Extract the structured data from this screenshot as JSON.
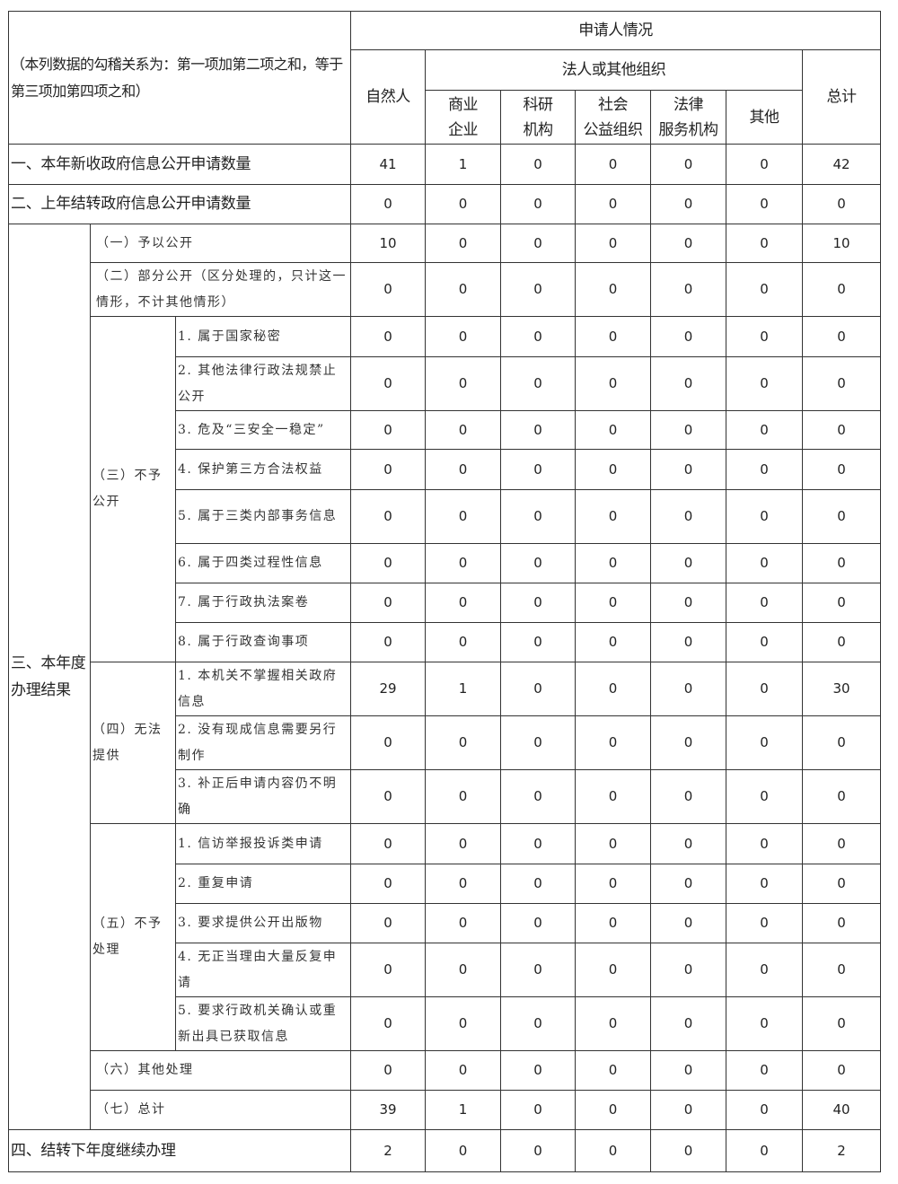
{
  "header": {
    "note": "（本列数据的勾稽关系为：第一项加第二项之和，等于第三项加第四项之和）",
    "applicant": "申请人情况",
    "natural": "自然人",
    "legal": "法人或其他组织",
    "orgs": [
      "商业\n企业",
      "科研\n机构",
      "社会\n公益组织",
      "法律\n服务机构",
      "其他"
    ],
    "total": "总计"
  },
  "section3_label": "三、本年度办理结果",
  "groups": {
    "not_disclosed": "（三）不予公开",
    "cannot_provide": "（四）无法提供",
    "not_processed": "（五）不予处理"
  },
  "rows": [
    {
      "label": "一、本年新收政府信息公开申请数量",
      "values": [
        "41",
        "1",
        "0",
        "0",
        "0",
        "0",
        "42"
      ]
    },
    {
      "label": "二、上年结转政府信息公开申请数量",
      "values": [
        "0",
        "0",
        "0",
        "0",
        "0",
        "0",
        "0"
      ]
    },
    {
      "label": "（一）予以公开",
      "values": [
        "10",
        "0",
        "0",
        "0",
        "0",
        "0",
        "10"
      ]
    },
    {
      "label": "（二）部分公开（区分处理的，只计这一情形，不计其他情形）",
      "values": [
        "0",
        "0",
        "0",
        "0",
        "0",
        "0",
        "0"
      ]
    },
    {
      "label": "1. 属于国家秘密",
      "values": [
        "0",
        "0",
        "0",
        "0",
        "0",
        "0",
        "0"
      ]
    },
    {
      "label": "2. 其他法律行政法规禁止公开",
      "values": [
        "0",
        "0",
        "0",
        "0",
        "0",
        "0",
        "0"
      ]
    },
    {
      "label": "3. 危及“三安全一稳定”",
      "values": [
        "0",
        "0",
        "0",
        "0",
        "0",
        "0",
        "0"
      ]
    },
    {
      "label": "4. 保护第三方合法权益",
      "values": [
        "0",
        "0",
        "0",
        "0",
        "0",
        "0",
        "0"
      ]
    },
    {
      "label": "5. 属于三类内部事务信息",
      "values": [
        "0",
        "0",
        "0",
        "0",
        "0",
        "0",
        "0"
      ]
    },
    {
      "label": "6. 属于四类过程性信息",
      "values": [
        "0",
        "0",
        "0",
        "0",
        "0",
        "0",
        "0"
      ]
    },
    {
      "label": "7. 属于行政执法案卷",
      "values": [
        "0",
        "0",
        "0",
        "0",
        "0",
        "0",
        "0"
      ]
    },
    {
      "label": "8. 属于行政查询事项",
      "values": [
        "0",
        "0",
        "0",
        "0",
        "0",
        "0",
        "0"
      ]
    },
    {
      "label": "1. 本机关不掌握相关政府信息",
      "values": [
        "29",
        "1",
        "0",
        "0",
        "0",
        "0",
        "30"
      ]
    },
    {
      "label": "2. 没有现成信息需要另行制作",
      "values": [
        "0",
        "0",
        "0",
        "0",
        "0",
        "0",
        "0"
      ]
    },
    {
      "label": "3. 补正后申请内容仍不明确",
      "values": [
        "0",
        "0",
        "0",
        "0",
        "0",
        "0",
        "0"
      ]
    },
    {
      "label": "1. 信访举报投诉类申请",
      "values": [
        "0",
        "0",
        "0",
        "0",
        "0",
        "0",
        "0"
      ]
    },
    {
      "label": "2. 重复申请",
      "values": [
        "0",
        "0",
        "0",
        "0",
        "0",
        "0",
        "0"
      ]
    },
    {
      "label": "3. 要求提供公开出版物",
      "values": [
        "0",
        "0",
        "0",
        "0",
        "0",
        "0",
        "0"
      ]
    },
    {
      "label": "4. 无正当理由大量反复申请",
      "values": [
        "0",
        "0",
        "0",
        "0",
        "0",
        "0",
        "0"
      ]
    },
    {
      "label": "5. 要求行政机关确认或重新出具已获取信息",
      "values": [
        "0",
        "0",
        "0",
        "0",
        "0",
        "0",
        "0"
      ]
    },
    {
      "label": "（六）其他处理",
      "values": [
        "0",
        "0",
        "0",
        "0",
        "0",
        "0",
        "0"
      ]
    },
    {
      "label": "（七）总计",
      "values": [
        "39",
        "1",
        "0",
        "0",
        "0",
        "0",
        "40"
      ]
    },
    {
      "label": "四、结转下年度继续办理",
      "values": [
        "2",
        "0",
        "0",
        "0",
        "0",
        "0",
        "2"
      ]
    }
  ]
}
